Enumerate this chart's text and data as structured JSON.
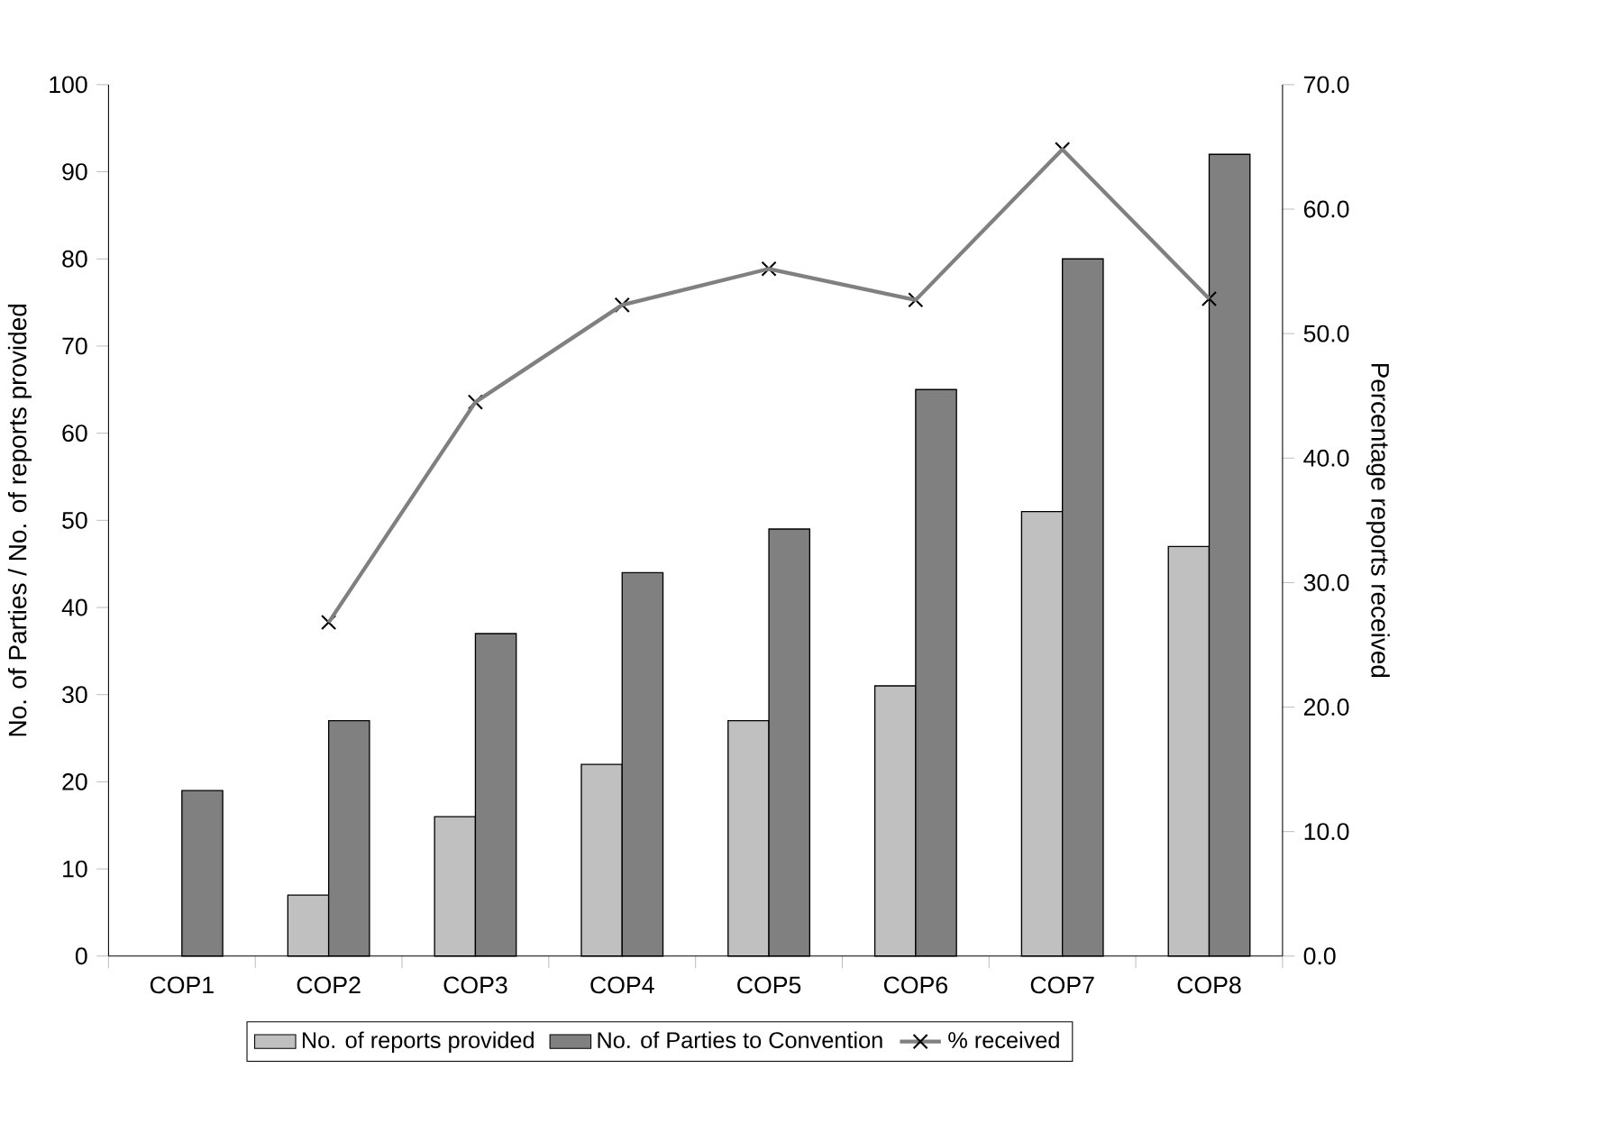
{
  "chart_data": {
    "type": "bar",
    "categories": [
      "COP1",
      "COP2",
      "COP3",
      "COP4",
      "COP5",
      "COP6",
      "COP7",
      "COP8"
    ],
    "series": [
      {
        "name": "No. of reports provided",
        "color": "#c0c0c0",
        "values": [
          null,
          7,
          16,
          22,
          27,
          31,
          51,
          47
        ]
      },
      {
        "name": "No. of Parties to Convention",
        "color": "#808080",
        "values": [
          19,
          27,
          37,
          44,
          49,
          65,
          80,
          92
        ]
      },
      {
        "name": "% received",
        "color": "#808080",
        "type": "line",
        "axis": "y2",
        "values": [
          null,
          26.8,
          44.5,
          52.3,
          55.2,
          52.7,
          64.8,
          52.8
        ]
      }
    ],
    "ylabel": "No. of Parties / No. of reports provided",
    "y2label": "Percentage reports received",
    "ylim": [
      0,
      100
    ],
    "yticks": [
      0,
      10,
      20,
      30,
      40,
      50,
      60,
      70,
      80,
      90,
      100
    ],
    "y2lim": [
      0,
      70
    ],
    "y2ticks": [
      {
        "value": 0,
        "label": "0.0"
      },
      {
        "value": 10,
        "label": "10.0"
      },
      {
        "value": 20,
        "label": "20.0"
      },
      {
        "value": 30,
        "label": "30.0"
      },
      {
        "value": 40,
        "label": "40.0"
      },
      {
        "value": 50,
        "label": "50.0"
      },
      {
        "value": 60,
        "label": "60.0"
      },
      {
        "value": 70,
        "label": "70.0"
      }
    ],
    "marker": "cross",
    "legend": "bottom"
  }
}
